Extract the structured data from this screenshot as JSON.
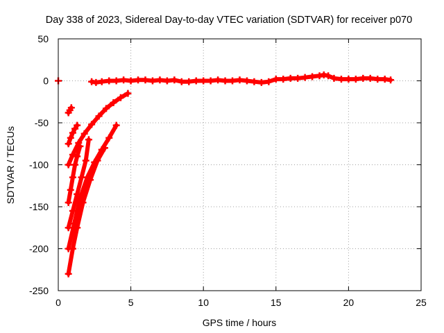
{
  "chart_data": {
    "type": "scatter",
    "title": "Day 338 of 2023, Sidereal Day-to-day VTEC variation (SDTVAR) for receiver p070",
    "xlabel": "GPS time / hours",
    "ylabel": "SDTVAR / TECUs",
    "xlim": [
      0,
      25
    ],
    "ylim": [
      -250,
      50
    ],
    "xticks": [
      0,
      5,
      10,
      15,
      20,
      25
    ],
    "yticks": [
      50,
      0,
      -50,
      -100,
      -150,
      -200,
      -250
    ],
    "grid": true,
    "legend": "none",
    "marker": "plus",
    "color": "#ff0000",
    "series": [
      {
        "name": "isolated-point",
        "x": [
          0.0
        ],
        "y": [
          0
        ]
      },
      {
        "name": "baseline",
        "x": [
          2.3,
          2.6,
          3.0,
          3.5,
          4.0,
          4.5,
          5.0,
          5.5,
          6.0,
          6.5,
          7.0,
          7.5,
          8.0,
          8.5,
          9.0,
          9.5,
          10.0,
          10.5,
          11.0,
          11.5,
          12.0,
          12.5,
          13.0,
          13.5,
          14.0,
          14.5,
          15.0,
          15.5,
          16.0,
          16.5,
          17.0,
          17.5,
          18.0,
          18.3,
          18.6,
          19.0,
          19.5,
          20.0,
          20.5,
          21.0,
          21.5,
          22.0,
          22.5,
          22.9
        ],
        "y": [
          -1,
          -2,
          -1,
          0,
          0,
          1,
          0,
          1,
          1,
          0,
          1,
          0,
          1,
          -1,
          -1,
          0,
          0,
          0,
          1,
          0,
          0,
          1,
          0,
          -1,
          -2,
          -1,
          2,
          2,
          3,
          3,
          4,
          5,
          6,
          7,
          6,
          3,
          2,
          2,
          2,
          3,
          3,
          2,
          2,
          1
        ]
      },
      {
        "name": "arc-1",
        "x": [
          0.7,
          0.8,
          0.9
        ],
        "y": [
          -38,
          -35,
          -32
        ]
      },
      {
        "name": "arc-2",
        "x": [
          0.7,
          0.85,
          1.0,
          1.15,
          1.3
        ],
        "y": [
          -75,
          -68,
          -62,
          -57,
          -53
        ]
      },
      {
        "name": "arc-3",
        "x": [
          0.7,
          1.0,
          1.4,
          1.8,
          2.3,
          2.8,
          3.3,
          3.8,
          4.3,
          4.8
        ],
        "y": [
          -100,
          -88,
          -74,
          -63,
          -52,
          -42,
          -33,
          -26,
          -20,
          -15
        ]
      },
      {
        "name": "arc-4",
        "x": [
          0.7,
          0.85,
          1.0,
          1.15,
          1.3,
          1.5
        ],
        "y": [
          -145,
          -130,
          -115,
          -100,
          -90,
          -78
        ]
      },
      {
        "name": "arc-5",
        "x": [
          0.7,
          1.0,
          1.3,
          1.6,
          1.9,
          2.1
        ],
        "y": [
          -175,
          -155,
          -135,
          -115,
          -95,
          -70
        ]
      },
      {
        "name": "arc-6",
        "x": [
          0.7,
          1.1,
          1.5,
          2.0,
          2.5,
          3.0,
          3.5,
          4.0
        ],
        "y": [
          -200,
          -170,
          -140,
          -115,
          -97,
          -82,
          -68,
          -53
        ]
      },
      {
        "name": "arc-7",
        "x": [
          0.7,
          1.0,
          1.3,
          1.7,
          2.2,
          2.7,
          3.2
        ],
        "y": [
          -230,
          -200,
          -175,
          -145,
          -118,
          -95,
          -80
        ]
      }
    ]
  }
}
